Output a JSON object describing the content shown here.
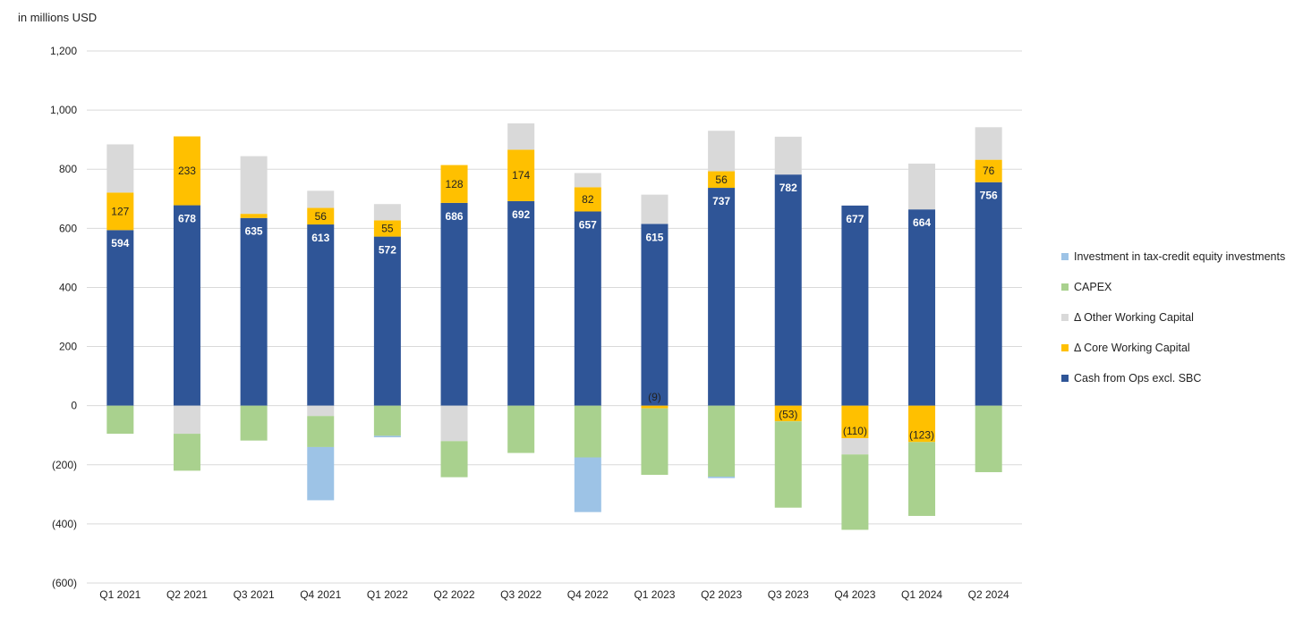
{
  "chart_data": {
    "type": "bar",
    "stacked": true,
    "unit_label": "in millions USD",
    "ylim": [
      -600,
      1200
    ],
    "yticks": [
      -600,
      -400,
      -200,
      0,
      200,
      400,
      600,
      800,
      1000,
      1200
    ],
    "ytick_labels": [
      "(600)",
      "(400)",
      "(200)",
      "0",
      "200",
      "400",
      "600",
      "800",
      "1,000",
      "1,200"
    ],
    "gridlines": true,
    "legend_position": "right",
    "categories": [
      "Q1 2021",
      "Q2 2021",
      "Q3 2021",
      "Q4 2021",
      "Q1 2022",
      "Q2 2022",
      "Q3 2022",
      "Q4 2022",
      "Q1 2023",
      "Q2 2023",
      "Q3 2023",
      "Q4 2023",
      "Q1 2024",
      "Q2 2024"
    ],
    "series": [
      {
        "name": "Cash from Ops excl. SBC",
        "color": "#2f5597",
        "label_style": "white",
        "values": [
          594,
          678,
          635,
          613,
          572,
          686,
          692,
          657,
          615,
          737,
          782,
          677,
          664,
          756
        ],
        "labels": [
          "594",
          "678",
          "635",
          "613",
          "572",
          "686",
          "692",
          "657",
          "615",
          "737",
          "782",
          "677",
          "664",
          "756"
        ]
      },
      {
        "name": "Δ Core Working Capital",
        "color": "#ffc000",
        "label_style": "dark",
        "values": [
          127,
          233,
          14,
          56,
          55,
          128,
          174,
          82,
          -9,
          56,
          -53,
          -110,
          -123,
          76
        ],
        "labels": [
          "127",
          "233",
          "",
          "56",
          "55",
          "128",
          "174",
          "82",
          "(9)",
          "56",
          "(53)",
          "(110)",
          "(123)",
          "76"
        ]
      },
      {
        "name": "Δ Other Working Capital",
        "color": "#d9d9d9",
        "label_style": "none",
        "values": [
          163,
          -95,
          195,
          58,
          55,
          0,
          89,
          48,
          99,
          137,
          128,
          0,
          155,
          110
        ],
        "labels": []
      },
      {
        "name": "CAPEX",
        "color": "#a9d18e",
        "label_style": "none",
        "values": [
          -95,
          -125,
          -118,
          -105,
          -102,
          -122,
          -160,
          -175,
          -225,
          -240,
          -292,
          -255,
          -250,
          -225
        ],
        "labels": []
      },
      {
        "name": "Investment in tax-credit equity investments",
        "color": "#9dc3e6",
        "label_style": "none",
        "values": [
          0,
          0,
          0,
          -180,
          -5,
          0,
          0,
          -185,
          0,
          -5,
          0,
          0,
          0,
          0
        ],
        "labels": []
      }
    ],
    "other_wc_negative_extra": [
      0,
      0,
      0,
      -35,
      0,
      -120,
      0,
      0,
      0,
      0,
      0,
      -55,
      0,
      0
    ],
    "legend_order": [
      "Investment in tax-credit equity investments",
      "CAPEX",
      "Δ Other Working Capital",
      "Δ Core Working Capital",
      "Cash from Ops excl. SBC"
    ]
  }
}
